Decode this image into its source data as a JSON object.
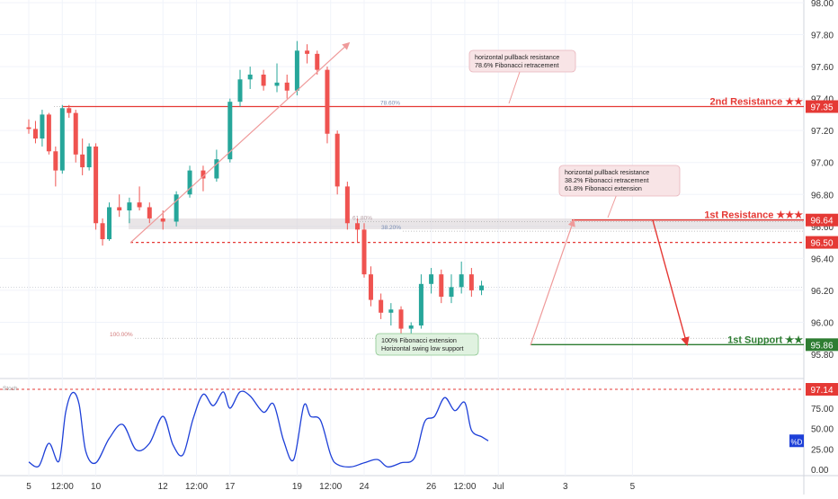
{
  "chart_data": [
    {
      "type": "candlestick",
      "title": "",
      "ylim": [
        95.7,
        98.0
      ],
      "price_ticks": [
        "98.00",
        "97.80",
        "97.60",
        "97.40",
        "97.20",
        "97.00",
        "96.80",
        "96.60",
        "96.40",
        "96.20",
        "96.00",
        "95.80"
      ],
      "x_tick_labels": [
        {
          "label": "5",
          "t": 0
        },
        {
          "label": "12:00",
          "t": 0.5
        },
        {
          "label": "10",
          "t": 1
        },
        {
          "label": "12",
          "t": 2
        },
        {
          "label": "12:00",
          "t": 2.5
        },
        {
          "label": "17",
          "t": 3
        },
        {
          "label": "19",
          "t": 4
        },
        {
          "label": "12:00",
          "t": 4.5
        },
        {
          "label": "24",
          "t": 5
        },
        {
          "label": "26",
          "t": 6
        },
        {
          "label": "12:00",
          "t": 6.5
        },
        {
          "label": "Jul",
          "t": 7
        },
        {
          "label": "3",
          "t": 8
        },
        {
          "label": "5",
          "t": 9
        }
      ],
      "series": [
        {
          "t": 0.0,
          "o": 97.22,
          "h": 97.27,
          "l": 97.18,
          "c": 97.21
        },
        {
          "t": 0.1,
          "o": 97.21,
          "h": 97.26,
          "l": 97.12,
          "c": 97.15
        },
        {
          "t": 0.2,
          "o": 97.15,
          "h": 97.33,
          "l": 97.1,
          "c": 97.3
        },
        {
          "t": 0.3,
          "o": 97.3,
          "h": 97.31,
          "l": 97.05,
          "c": 97.07
        },
        {
          "t": 0.4,
          "o": 97.07,
          "h": 97.1,
          "l": 96.85,
          "c": 96.95
        },
        {
          "t": 0.5,
          "o": 96.95,
          "h": 97.36,
          "l": 96.93,
          "c": 97.34
        },
        {
          "t": 0.6,
          "o": 97.34,
          "h": 97.36,
          "l": 97.28,
          "c": 97.31
        },
        {
          "t": 0.7,
          "o": 97.31,
          "h": 97.33,
          "l": 97.0,
          "c": 97.05
        },
        {
          "t": 0.8,
          "o": 97.05,
          "h": 97.15,
          "l": 96.92,
          "c": 96.97
        },
        {
          "t": 0.9,
          "o": 96.97,
          "h": 97.12,
          "l": 96.95,
          "c": 97.1
        },
        {
          "t": 1.0,
          "o": 97.1,
          "h": 97.12,
          "l": 96.58,
          "c": 96.62
        },
        {
          "t": 1.1,
          "o": 96.62,
          "h": 96.65,
          "l": 96.48,
          "c": 96.52
        },
        {
          "t": 1.2,
          "o": 96.52,
          "h": 96.75,
          "l": 96.51,
          "c": 96.72
        },
        {
          "t": 1.35,
          "o": 96.72,
          "h": 96.8,
          "l": 96.66,
          "c": 96.7
        },
        {
          "t": 1.5,
          "o": 96.7,
          "h": 96.78,
          "l": 96.62,
          "c": 96.75
        },
        {
          "t": 1.65,
          "o": 96.75,
          "h": 96.85,
          "l": 96.7,
          "c": 96.72
        },
        {
          "t": 1.8,
          "o": 96.72,
          "h": 96.75,
          "l": 96.62,
          "c": 96.65
        },
        {
          "t": 2.0,
          "o": 96.65,
          "h": 96.7,
          "l": 96.58,
          "c": 96.63
        },
        {
          "t": 2.2,
          "o": 96.63,
          "h": 96.82,
          "l": 96.6,
          "c": 96.8
        },
        {
          "t": 2.4,
          "o": 96.8,
          "h": 96.98,
          "l": 96.78,
          "c": 96.95
        },
        {
          "t": 2.6,
          "o": 96.95,
          "h": 96.98,
          "l": 96.82,
          "c": 96.9
        },
        {
          "t": 2.8,
          "o": 96.9,
          "h": 97.08,
          "l": 96.88,
          "c": 97.02
        },
        {
          "t": 3.0,
          "o": 97.02,
          "h": 97.4,
          "l": 97.0,
          "c": 97.38
        },
        {
          "t": 3.15,
          "o": 97.38,
          "h": 97.58,
          "l": 97.35,
          "c": 97.52
        },
        {
          "t": 3.3,
          "o": 97.52,
          "h": 97.6,
          "l": 97.46,
          "c": 97.55
        },
        {
          "t": 3.5,
          "o": 97.55,
          "h": 97.58,
          "l": 97.45,
          "c": 97.48
        },
        {
          "t": 3.7,
          "o": 97.48,
          "h": 97.62,
          "l": 97.44,
          "c": 97.5
        },
        {
          "t": 3.85,
          "o": 97.5,
          "h": 97.55,
          "l": 97.4,
          "c": 97.45
        },
        {
          "t": 4.0,
          "o": 97.45,
          "h": 97.76,
          "l": 97.42,
          "c": 97.7
        },
        {
          "t": 4.15,
          "o": 97.7,
          "h": 97.74,
          "l": 97.62,
          "c": 97.68
        },
        {
          "t": 4.3,
          "o": 97.68,
          "h": 97.7,
          "l": 97.55,
          "c": 97.58
        },
        {
          "t": 4.45,
          "o": 97.58,
          "h": 97.6,
          "l": 97.12,
          "c": 97.18
        },
        {
          "t": 4.6,
          "o": 97.18,
          "h": 97.2,
          "l": 96.8,
          "c": 96.85
        },
        {
          "t": 4.75,
          "o": 96.85,
          "h": 96.88,
          "l": 96.58,
          "c": 96.62
        },
        {
          "t": 4.9,
          "o": 96.62,
          "h": 96.65,
          "l": 96.5,
          "c": 96.58
        },
        {
          "t": 5.0,
          "o": 96.58,
          "h": 96.62,
          "l": 96.28,
          "c": 96.3
        },
        {
          "t": 5.1,
          "o": 96.3,
          "h": 96.35,
          "l": 96.1,
          "c": 96.14
        },
        {
          "t": 5.25,
          "o": 96.14,
          "h": 96.18,
          "l": 96.02,
          "c": 96.06
        },
        {
          "t": 5.4,
          "o": 96.06,
          "h": 96.12,
          "l": 95.98,
          "c": 96.08
        },
        {
          "t": 5.55,
          "o": 96.08,
          "h": 96.1,
          "l": 95.92,
          "c": 95.96
        },
        {
          "t": 5.7,
          "o": 95.96,
          "h": 96.0,
          "l": 95.86,
          "c": 95.98
        },
        {
          "t": 5.85,
          "o": 95.98,
          "h": 96.3,
          "l": 95.96,
          "c": 96.24
        },
        {
          "t": 6.0,
          "o": 96.24,
          "h": 96.34,
          "l": 96.18,
          "c": 96.3
        },
        {
          "t": 6.15,
          "o": 96.3,
          "h": 96.33,
          "l": 96.12,
          "c": 96.16
        },
        {
          "t": 6.3,
          "o": 96.16,
          "h": 96.3,
          "l": 96.12,
          "c": 96.22
        },
        {
          "t": 6.45,
          "o": 96.22,
          "h": 96.38,
          "l": 96.18,
          "c": 96.3
        },
        {
          "t": 6.6,
          "o": 96.3,
          "h": 96.34,
          "l": 96.16,
          "c": 96.2
        },
        {
          "t": 6.75,
          "o": 96.2,
          "h": 96.26,
          "l": 96.17,
          "c": 96.23
        }
      ],
      "levels": [
        {
          "name": "2nd Resistance ★★",
          "value": 97.35,
          "tag": "97.35",
          "color": "#e53935",
          "style": "solid"
        },
        {
          "name": "1st Resistance ★★★",
          "value": 96.64,
          "tag": "96.64",
          "color": "#e53935",
          "style": "solid"
        },
        {
          "name": "",
          "value": 96.5,
          "tag": "96.50",
          "color": "#e53935",
          "style": "dashed"
        },
        {
          "name": "1st Support ★★",
          "value": 95.86,
          "tag": "95.86",
          "color": "#2e7d32",
          "style": "solid"
        }
      ],
      "current_price": 96.22,
      "fib_levels": [
        {
          "label": "78.60%",
          "value": 97.35
        },
        {
          "label": "61.80%",
          "value": 96.63
        },
        {
          "label": "38.20%",
          "value": 96.57
        },
        {
          "label": "100.00%",
          "value": 95.9
        }
      ],
      "annotations": [
        {
          "lines": [
            "horizontal pullback resistance",
            "78.6% Fibonacci retracement"
          ],
          "kind": "red"
        },
        {
          "lines": [
            "horizontal pullback resistance",
            "38.2% Fibonacci retracement",
            "61.8% Fibonacci extension"
          ],
          "kind": "red"
        },
        {
          "lines": [
            "100% Fibonacci extension",
            "Horizontal swing low support"
          ],
          "kind": "green"
        }
      ],
      "colors": {
        "up": "#26a69a",
        "down": "#ef5350",
        "resistance": "#e53935",
        "support": "#2e7d32",
        "oscillator": "#1e40d8"
      }
    },
    {
      "type": "line",
      "label": "Stoch",
      "ylim": [
        -5,
        105
      ],
      "y_ticks": [
        "75.00",
        "50.00",
        "25.00",
        "0.00"
      ],
      "overbought_level": {
        "value": 97.14,
        "tag": "97.14"
      },
      "series_tag": "%D",
      "series": [
        {
          "t": 0.0,
          "v": 9
        },
        {
          "t": 0.15,
          "v": 4
        },
        {
          "t": 0.3,
          "v": 32
        },
        {
          "t": 0.45,
          "v": 10
        },
        {
          "t": 0.55,
          "v": 70
        },
        {
          "t": 0.65,
          "v": 94
        },
        {
          "t": 0.75,
          "v": 80
        },
        {
          "t": 0.85,
          "v": 22
        },
        {
          "t": 1.0,
          "v": 8
        },
        {
          "t": 1.2,
          "v": 38
        },
        {
          "t": 1.4,
          "v": 55
        },
        {
          "t": 1.6,
          "v": 24
        },
        {
          "t": 1.8,
          "v": 32
        },
        {
          "t": 2.0,
          "v": 65
        },
        {
          "t": 2.15,
          "v": 30
        },
        {
          "t": 2.3,
          "v": 18
        },
        {
          "t": 2.45,
          "v": 62
        },
        {
          "t": 2.6,
          "v": 92
        },
        {
          "t": 2.75,
          "v": 78
        },
        {
          "t": 2.9,
          "v": 95
        },
        {
          "t": 3.0,
          "v": 75
        },
        {
          "t": 3.15,
          "v": 95
        },
        {
          "t": 3.3,
          "v": 90
        },
        {
          "t": 3.5,
          "v": 70
        },
        {
          "t": 3.65,
          "v": 80
        },
        {
          "t": 3.8,
          "v": 35
        },
        {
          "t": 3.95,
          "v": 12
        },
        {
          "t": 4.1,
          "v": 78
        },
        {
          "t": 4.2,
          "v": 65
        },
        {
          "t": 4.35,
          "v": 60
        },
        {
          "t": 4.5,
          "v": 18
        },
        {
          "t": 4.6,
          "v": 6
        },
        {
          "t": 4.8,
          "v": 3
        },
        {
          "t": 5.0,
          "v": 8
        },
        {
          "t": 5.2,
          "v": 12
        },
        {
          "t": 5.35,
          "v": 3
        },
        {
          "t": 5.55,
          "v": 8
        },
        {
          "t": 5.75,
          "v": 14
        },
        {
          "t": 5.9,
          "v": 58
        },
        {
          "t": 6.05,
          "v": 65
        },
        {
          "t": 6.2,
          "v": 88
        },
        {
          "t": 6.35,
          "v": 72
        },
        {
          "t": 6.5,
          "v": 82
        },
        {
          "t": 6.6,
          "v": 48
        },
        {
          "t": 6.75,
          "v": 40
        },
        {
          "t": 6.85,
          "v": 35
        }
      ]
    }
  ]
}
